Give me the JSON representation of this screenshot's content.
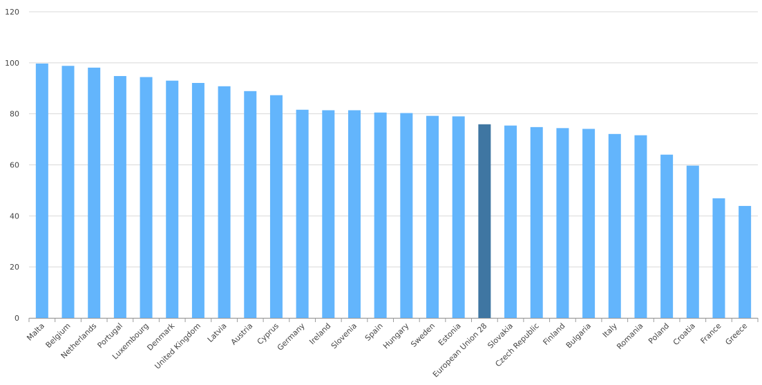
{
  "chart_data": {
    "type": "bar",
    "categories": [
      "Malta",
      "Belgium",
      "Netherlands",
      "Portugal",
      "Luxembourg",
      "Denmark",
      "United Kingdom",
      "Latvia",
      "Austria",
      "Cyprus",
      "Germany",
      "Ireland",
      "Slovenia",
      "Spain",
      "Hungary",
      "Sweden",
      "Estonia",
      "European Union 28",
      "Slovakia",
      "Czech Republic",
      "Finland",
      "Bulgaria",
      "Italy",
      "Romania",
      "Poland",
      "Croatia",
      "France",
      "Greece"
    ],
    "values": [
      99.7,
      98.8,
      98.1,
      94.8,
      94.4,
      93,
      92.1,
      90.8,
      88.9,
      87.3,
      81.6,
      81.4,
      81.4,
      80.5,
      80.3,
      79.2,
      79,
      75.9,
      75.4,
      74.8,
      74.4,
      74.1,
      72.1,
      71.6,
      64,
      59.7,
      46.9,
      43.9
    ],
    "colors": [
      "#63b5fc",
      "#63b5fc",
      "#63b5fc",
      "#63b5fc",
      "#63b5fc",
      "#63b5fc",
      "#63b5fc",
      "#63b5fc",
      "#63b5fc",
      "#63b5fc",
      "#63b5fc",
      "#63b5fc",
      "#63b5fc",
      "#63b5fc",
      "#63b5fc",
      "#63b5fc",
      "#63b5fc",
      "#3f76a2",
      "#63b5fc",
      "#63b5fc",
      "#63b5fc",
      "#63b5fc",
      "#63b5fc",
      "#63b5fc",
      "#63b5fc",
      "#63b5fc",
      "#63b5fc",
      "#63b5fc"
    ],
    "ylim": [
      0,
      120
    ],
    "yticks": [
      0,
      20,
      40,
      60,
      80,
      100,
      120
    ],
    "grid": true
  }
}
